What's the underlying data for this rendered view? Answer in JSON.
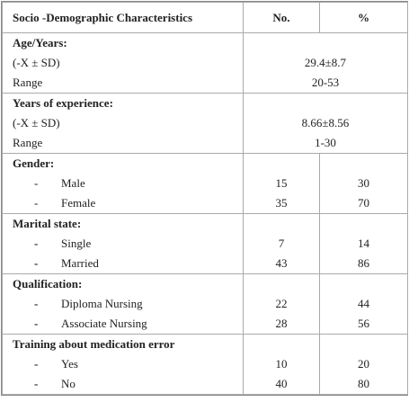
{
  "header": {
    "characteristic": "Socio -Demographic Characteristics",
    "no": "No.",
    "percent": "%"
  },
  "sections": [
    {
      "title": "Age/Years:",
      "rows": [
        {
          "label": "(-X ± SD)",
          "value": "29.4±8.7"
        },
        {
          "label": "Range",
          "value": "20-53"
        }
      ]
    },
    {
      "title": "Years of experience:",
      "rows": [
        {
          "label": "(-X ± SD)",
          "value": "8.66±8.56"
        },
        {
          "label": "Range",
          "value": "1-30"
        }
      ]
    },
    {
      "title": "Gender:",
      "rows": [
        {
          "bullet": "-",
          "label": "Male",
          "no": 15,
          "percent": 30
        },
        {
          "bullet": "-",
          "label": "Female",
          "no": 35,
          "percent": 70
        }
      ]
    },
    {
      "title": "Marital state:",
      "rows": [
        {
          "bullet": "-",
          "label": "Single",
          "no": 7,
          "percent": 14
        },
        {
          "bullet": "-",
          "label": "Married",
          "no": 43,
          "percent": 86
        }
      ]
    },
    {
      "title": "Qualification:",
      "rows": [
        {
          "bullet": "-",
          "label": "Diploma Nursing",
          "no": 22,
          "percent": 44
        },
        {
          "bullet": "-",
          "label": "Associate Nursing",
          "no": 28,
          "percent": 56
        }
      ]
    },
    {
      "title": "Training about medication error",
      "rows": [
        {
          "bullet": "-",
          "label": "Yes",
          "no": 10,
          "percent": 20
        },
        {
          "bullet": "-",
          "label": "No",
          "no": 40,
          "percent": 80
        }
      ]
    }
  ]
}
